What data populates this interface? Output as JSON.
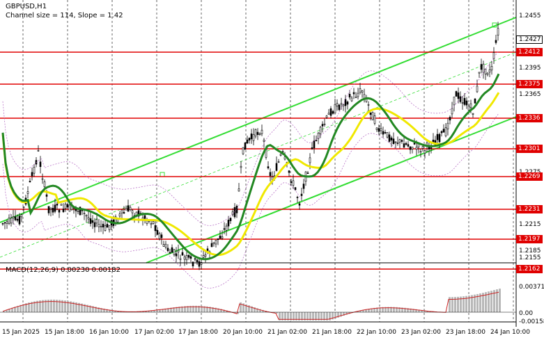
{
  "header": {
    "symbol": "GBPUSD,H1",
    "indicator": "Channel size = 114, Slope = 1.42"
  },
  "price_axis": {
    "ticks": [
      "1.2455",
      "1.2395",
      "1.2365",
      "1.2275",
      "1.2215",
      "1.2185",
      "1.2155"
    ],
    "levels": [
      "1.2412",
      "1.2375",
      "1.2336",
      "1.2301",
      "1.2269",
      "1.2231",
      "1.2197",
      "1.2162"
    ],
    "current": "1.2427"
  },
  "macd": {
    "label": "MACD(12,26,9) 0.00230 0.00182",
    "ticks": [
      "0.00371",
      "0.00",
      "-0.00158"
    ]
  },
  "time_axis": [
    "15 Jan 2025",
    "15 Jan 18:00",
    "16 Jan 10:00",
    "17 Jan 02:00",
    "17 Jan 18:00",
    "20 Jan 10:00",
    "21 Jan 02:00",
    "21 Jan 18:00",
    "22 Jan 10:00",
    "23 Jan 02:00",
    "23 Jan 18:00",
    "24 Jan 10:00"
  ],
  "colors": {
    "level": "#e00000",
    "channel": "#33dd33",
    "ma_fast": "#228822",
    "ma_slow": "#f0e800",
    "macd_hist": "#b8b8b8",
    "macd_signal": "#cc2222"
  }
}
